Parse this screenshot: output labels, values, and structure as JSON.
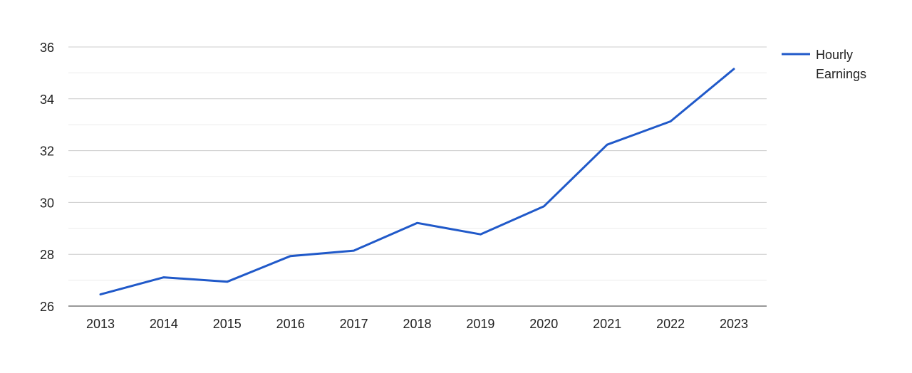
{
  "chart_data": {
    "type": "line",
    "title": "",
    "xlabel": "",
    "ylabel": "",
    "x": [
      "2013",
      "2014",
      "2015",
      "2016",
      "2017",
      "2018",
      "2019",
      "2020",
      "2021",
      "2022",
      "2023"
    ],
    "series": [
      {
        "name": "Hourly Earnings",
        "color": "#2059c9",
        "values": [
          26.45,
          27.11,
          26.94,
          27.93,
          28.14,
          29.21,
          28.77,
          29.85,
          32.23,
          33.13,
          35.15
        ]
      }
    ],
    "ylim": [
      26,
      36
    ],
    "yticks": [
      "26",
      "28",
      "30",
      "32",
      "34",
      "36"
    ],
    "grid": true,
    "legend_position": "right",
    "legend_lines": [
      "Hourly",
      "Earnings"
    ]
  }
}
